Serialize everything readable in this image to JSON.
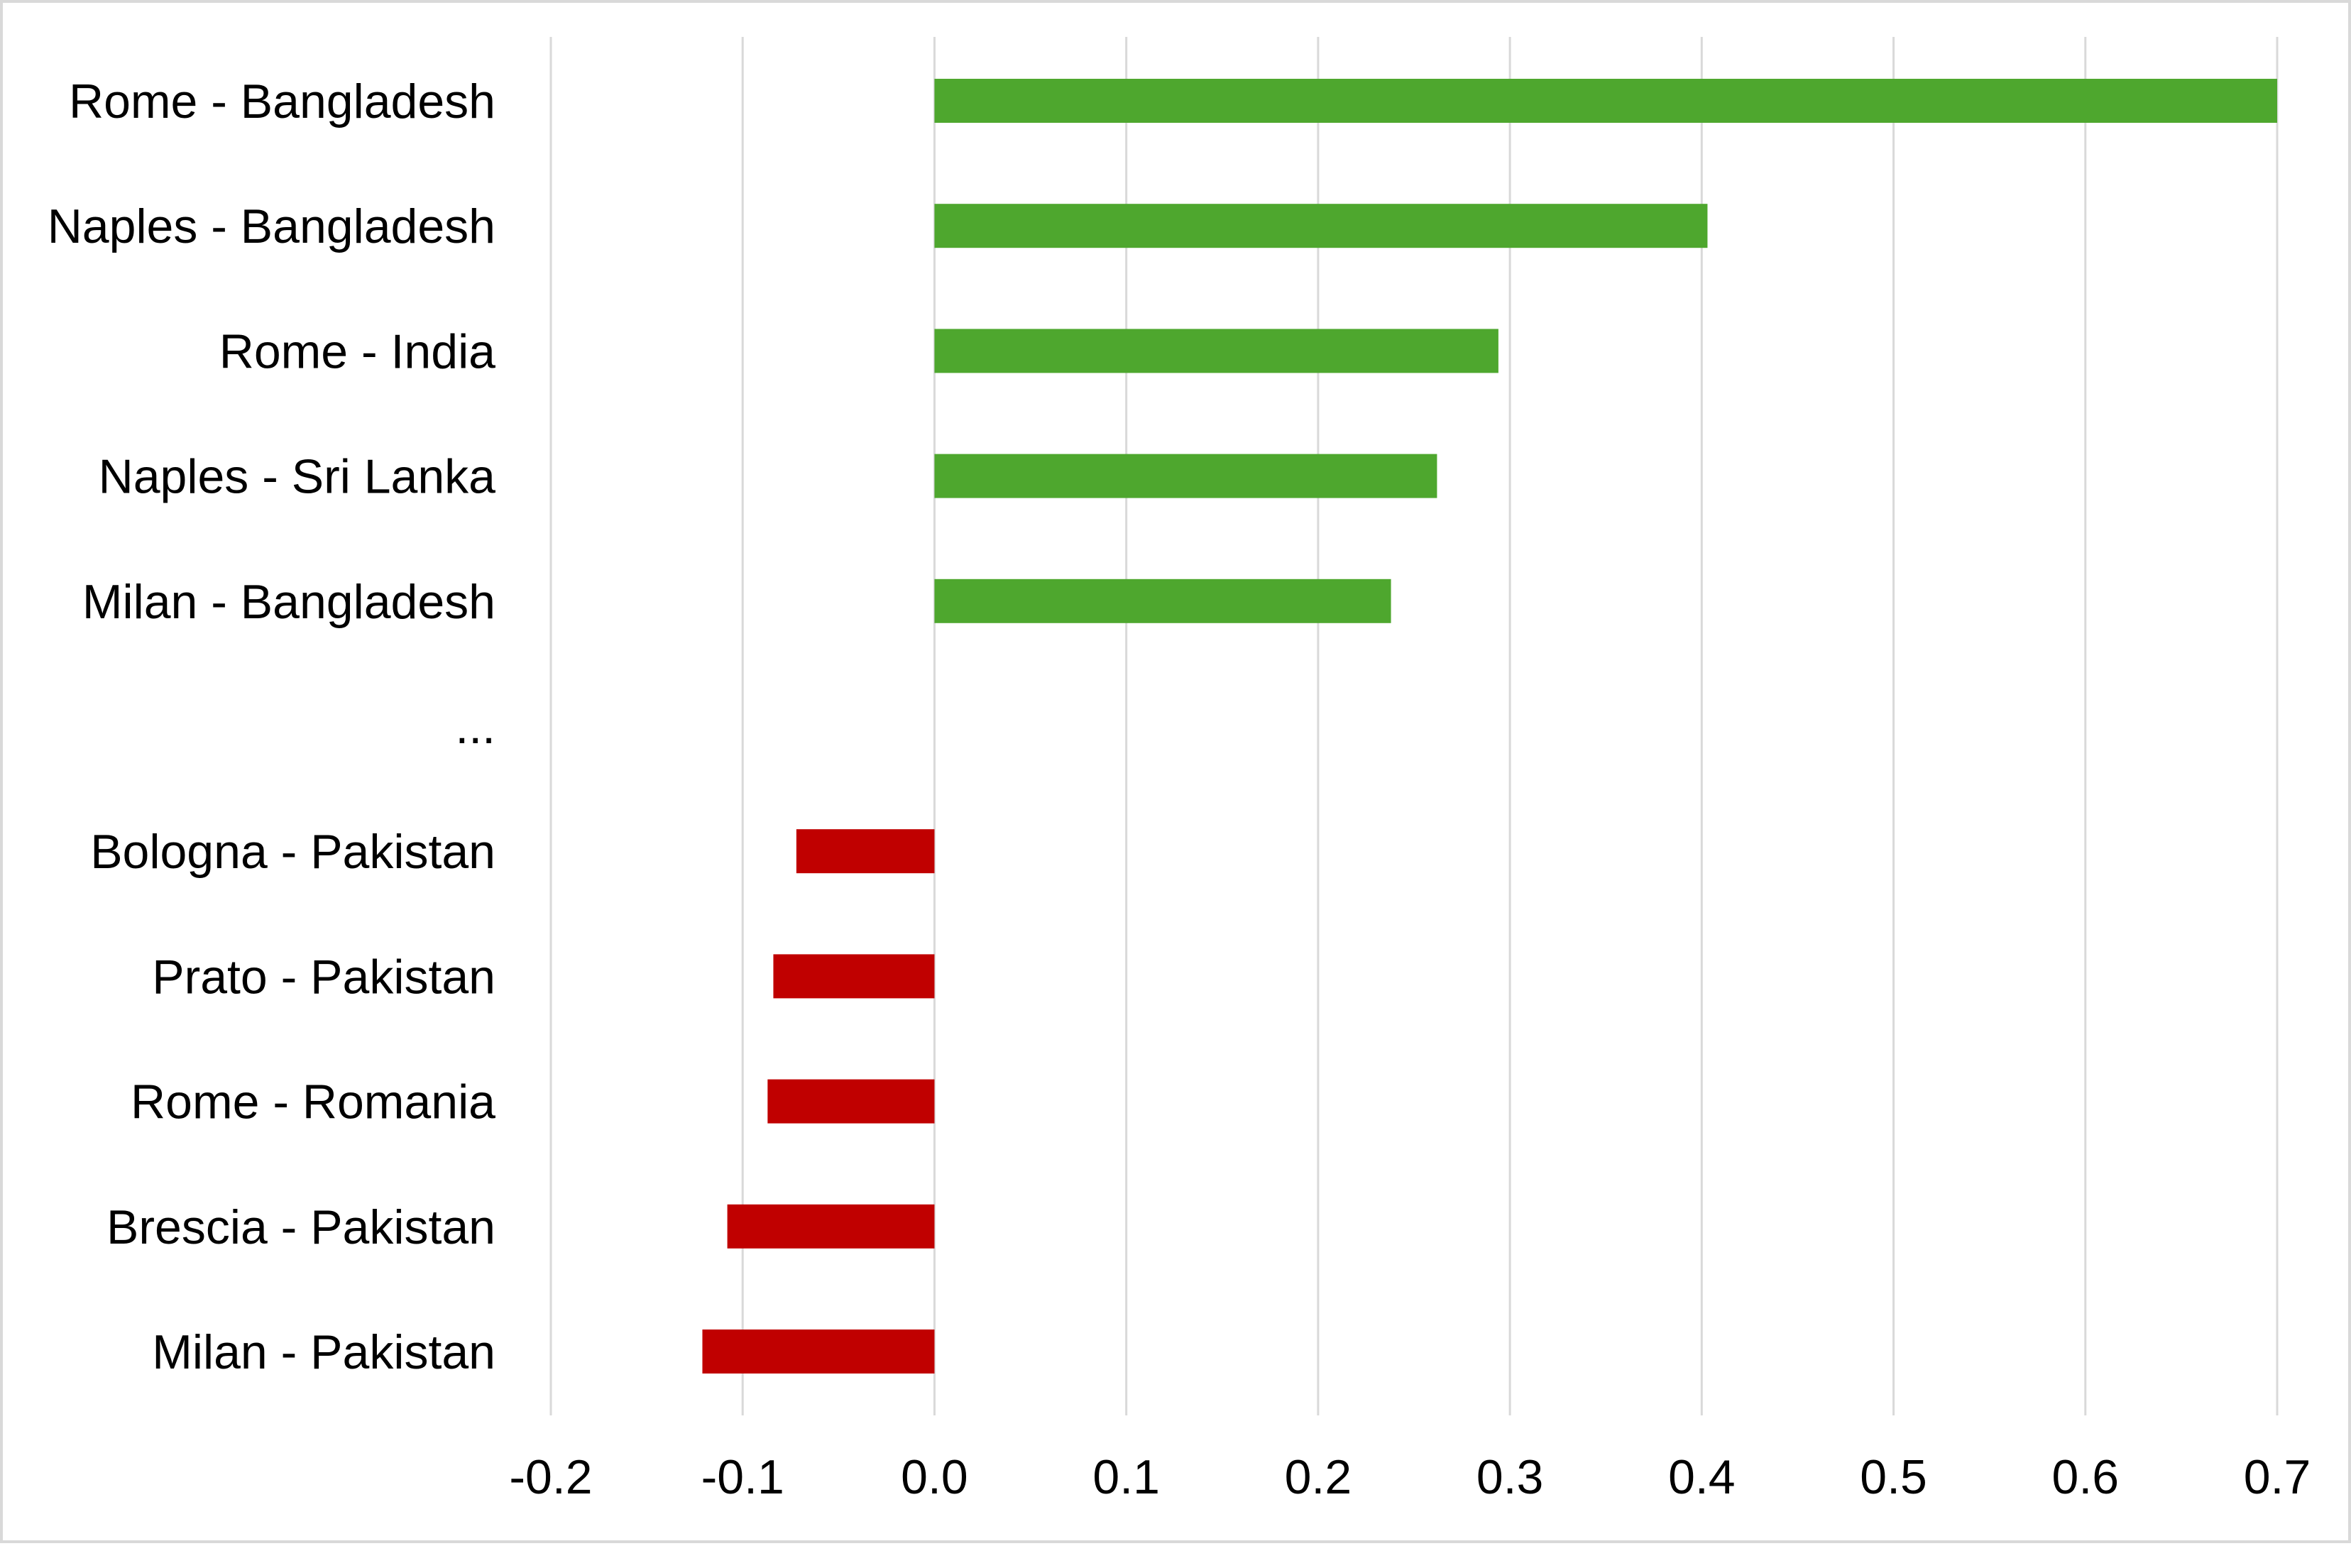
{
  "chart_data": {
    "type": "bar",
    "orientation": "horizontal",
    "title": "",
    "xlabel": "",
    "ylabel": "",
    "xlim": [
      -0.2,
      0.7
    ],
    "xticks": [
      "-0.2",
      "-0.1",
      "0.0",
      "0.1",
      "0.2",
      "0.3",
      "0.4",
      "0.5",
      "0.6",
      "0.7"
    ],
    "grid": "vertical",
    "legend": "none",
    "colors": {
      "positive": "#4EA72E",
      "negative": "#C00000",
      "grid": "#d9d9d9"
    },
    "categories": [
      "Rome - Bangladesh",
      "Naples - Bangladesh",
      "Rome - India",
      "Naples - Sri Lanka",
      "Milan - Bangladesh",
      "...",
      "Bologna - Pakistan",
      "Prato - Pakistan",
      "Rome - Romania",
      "Brescia - Pakistan",
      "Milan - Pakistan"
    ],
    "values": [
      0.7,
      0.403,
      0.294,
      0.262,
      0.238,
      null,
      -0.072,
      -0.084,
      -0.087,
      -0.108,
      -0.121
    ]
  }
}
